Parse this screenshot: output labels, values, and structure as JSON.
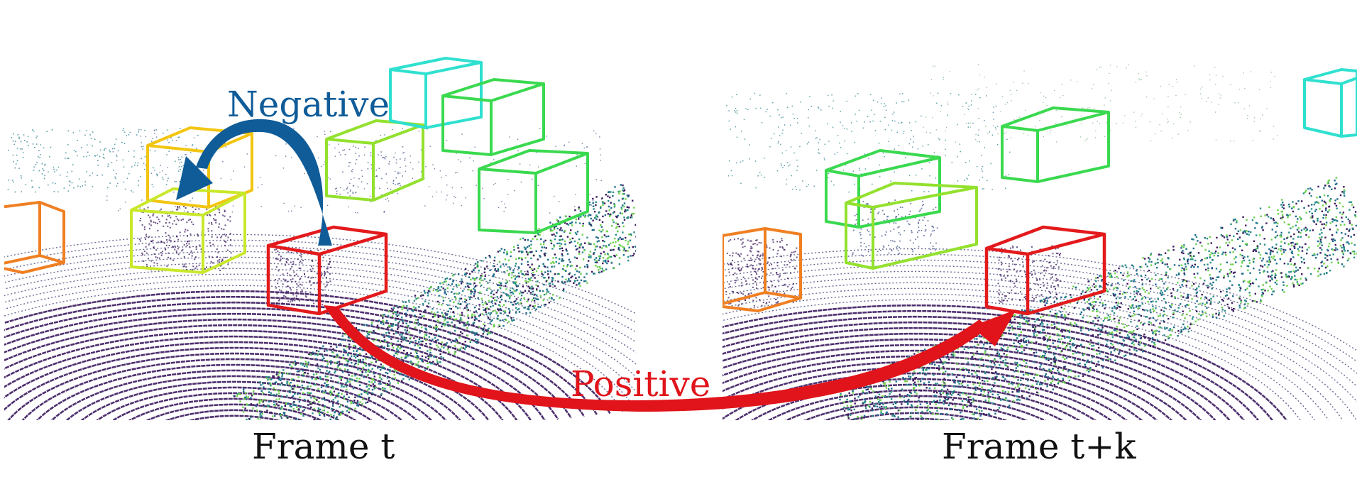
{
  "labels": {
    "negative": "Negative",
    "positive": "Positive",
    "frame_left": "Frame t",
    "frame_right": "Frame t+k"
  },
  "colors": {
    "negative_arrow": "#0f5c99",
    "positive_arrow": "#e0141a",
    "box_red": "#e31a1c",
    "box_orange": "#f07f22",
    "box_yellow": "#f2c511",
    "box_lime": "#c8e82a",
    "box_yellowgreen": "#93e12e",
    "box_green": "#3ad94f",
    "box_cyan": "#2fe0cf",
    "points_dark": "#3b1a5e",
    "points_teal": "#2a8f8a",
    "points_green": "#6cd24a"
  },
  "panels": [
    {
      "name": "left-lidar-scene",
      "boxes": [
        "orange",
        "yellow",
        "lime",
        "yellowgreen",
        "cyan",
        "green",
        "green",
        "red"
      ]
    },
    {
      "name": "right-lidar-scene",
      "boxes": [
        "orange",
        "green",
        "yellowgreen",
        "green",
        "cyan",
        "red"
      ]
    }
  ]
}
